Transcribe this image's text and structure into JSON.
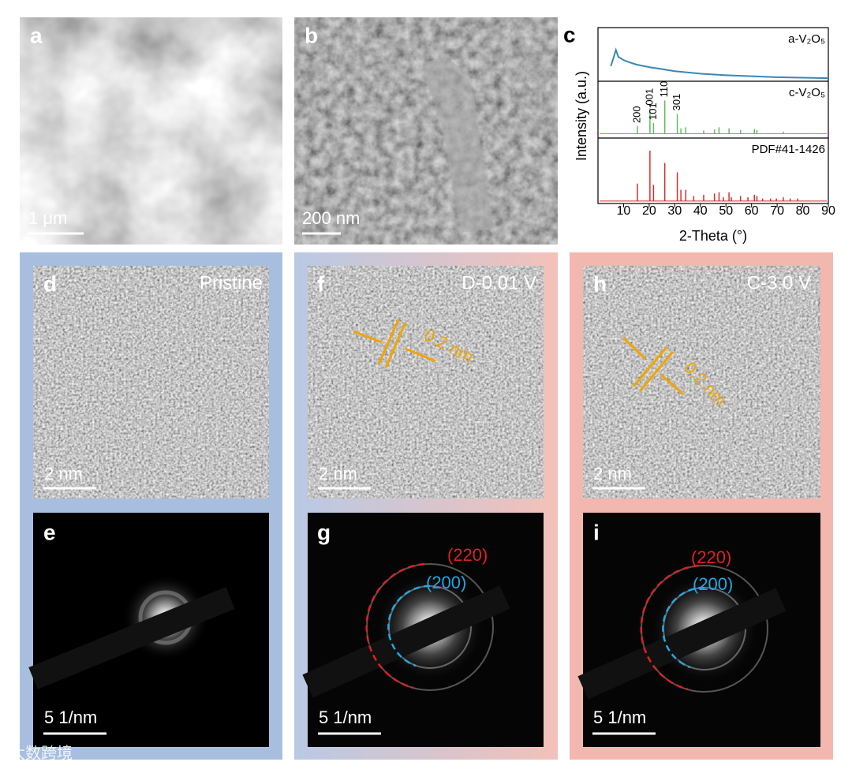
{
  "panels": [
    {
      "label": "a",
      "scale_bar": "1 μm"
    },
    {
      "label": "b",
      "scale_bar": "200 nm"
    },
    {
      "label": "d",
      "condition": "Pristine",
      "scale_bar": "2 nm"
    },
    {
      "label": "e",
      "scale_bar": "5 1/nm"
    },
    {
      "label": "f",
      "condition": "D-0.01 V",
      "spacing": "0.2 nm",
      "scale_bar": "2 nm"
    },
    {
      "label": "g",
      "rings": [
        "(220)",
        "(200)"
      ],
      "scale_bar": "5 1/nm"
    },
    {
      "label": "h",
      "condition": "C-3.0 V",
      "spacing": "0.2 nm",
      "scale_bar": "2 nm"
    },
    {
      "label": "i",
      "rings": [
        "(220)",
        "(200)"
      ],
      "scale_bar": "5 1/nm"
    }
  ],
  "watermark": "大数跨境",
  "chart_data": {
    "type": "line",
    "panel_label": "c",
    "x_label": "2-Theta (°)",
    "y_label": "Intensity (a.u.)",
    "xlim": [
      0,
      90
    ],
    "xticks": [
      10,
      20,
      30,
      40,
      50,
      60,
      70,
      80,
      90
    ],
    "ylim": [
      0,
      100
    ],
    "series": [
      {
        "name": "a-V₂O₅",
        "color": "#3a86b4",
        "style": "line",
        "x": [
          5,
          6,
          7,
          8,
          9,
          10,
          12,
          15,
          20,
          25,
          30,
          40,
          50,
          60,
          70,
          80,
          90
        ],
        "values": [
          30,
          45,
          62,
          48,
          45,
          42,
          38,
          33,
          28,
          24,
          20,
          15,
          12,
          10,
          8,
          7,
          6
        ]
      },
      {
        "name": "c-V₂O₅",
        "color": "#5cbf5c",
        "style": "stick",
        "baseline": 8,
        "x": [
          15.4,
          20.3,
          21.7,
          26.1,
          31.0,
          32.4,
          34.3,
          41.3,
          45.5,
          47.3,
          51.2,
          55.7,
          61.1,
          62.1,
          72.4
        ],
        "values": [
          22,
          55,
          28,
          70,
          45,
          18,
          20,
          14,
          16,
          20,
          18,
          15,
          17,
          15,
          12
        ],
        "peak_labels": [
          {
            "text": "200",
            "x": 15.4
          },
          {
            "text": "001",
            "x": 20.3
          },
          {
            "text": "101",
            "x": 21.7
          },
          {
            "text": "110",
            "x": 26.1
          },
          {
            "text": "301",
            "x": 31.0
          }
        ]
      },
      {
        "name": "PDF#41-1426",
        "color": "#d03030",
        "style": "stick",
        "baseline": 4,
        "x": [
          15.4,
          20.3,
          21.7,
          26.1,
          31.0,
          32.4,
          34.3,
          37.4,
          41.3,
          45.5,
          47.3,
          49.0,
          51.2,
          52.1,
          55.7,
          58.6,
          61.1,
          62.1,
          64.3,
          67.4,
          69.7,
          72.4,
          75.1,
          78.0
        ],
        "values": [
          32,
          85,
          30,
          65,
          50,
          22,
          22,
          12,
          14,
          16,
          18,
          10,
          18,
          10,
          12,
          10,
          14,
          12,
          8,
          8,
          8,
          10,
          8,
          8
        ]
      }
    ]
  }
}
